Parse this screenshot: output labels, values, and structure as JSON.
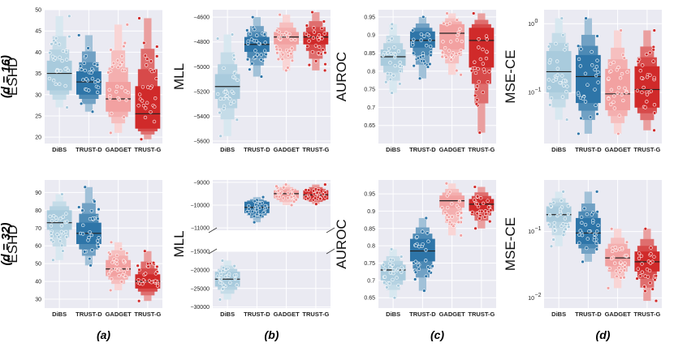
{
  "row_labels": [
    "(d = 16)",
    "(d = 32)"
  ],
  "column_labels": [
    "(a)",
    "(b)",
    "(c)",
    "(d)"
  ],
  "colors": {
    "DiBS": "#a9cbdd",
    "TRUST-D": "#2e75a8",
    "GADGET": "#f2a1a1",
    "TRUST-G": "#d02a2a",
    "panel_bg": "#eaeaf2"
  },
  "chart_data": [
    {
      "type": "boxen",
      "row": 0,
      "col": 0,
      "ylabel": "ESHD",
      "yscale": "linear",
      "ylim": [
        18.5,
        50
      ],
      "yticks": [
        20,
        25,
        30,
        35,
        40,
        45,
        50
      ],
      "categories": [
        "DiBS",
        "TRUST-D",
        "GADGET",
        "TRUST-G"
      ],
      "series": [
        {
          "name": "DiBS",
          "median": 35,
          "q1": 31,
          "q3": 38,
          "min": 27,
          "max": 48.5
        },
        {
          "name": "TRUST-D",
          "median": 33,
          "q1": 30,
          "q3": 35.5,
          "min": 26,
          "max": 44
        },
        {
          "name": "GADGET",
          "median": 29,
          "q1": 26,
          "q3": 33,
          "min": 21,
          "max": 46.5
        },
        {
          "name": "TRUST-G",
          "median": 25.5,
          "q1": 22,
          "q3": 32,
          "min": 19.5,
          "max": 48
        }
      ]
    },
    {
      "type": "boxen",
      "row": 0,
      "col": 1,
      "ylabel": "MLL",
      "yscale": "linear",
      "ylim": [
        -5620,
        -4540
      ],
      "yticks": [
        -4600,
        -4800,
        -5000,
        -5200,
        -5400,
        -5600
      ],
      "categories": [
        "DiBS",
        "TRUST-D",
        "GADGET",
        "TRUST-G"
      ],
      "series": [
        {
          "name": "DiBS",
          "median": -5160,
          "q1": -5260,
          "q3": -5060,
          "min": -5560,
          "max": -4740
        },
        {
          "name": "TRUST-D",
          "median": -4820,
          "q1": -4880,
          "q3": -4760,
          "min": -5080,
          "max": -4600
        },
        {
          "name": "GADGET",
          "median": -4760,
          "q1": -4820,
          "q3": -4720,
          "min": -5030,
          "max": -4580
        },
        {
          "name": "TRUST-G",
          "median": -4760,
          "q1": -4820,
          "q3": -4720,
          "min": -5030,
          "max": -4560
        }
      ]
    },
    {
      "type": "boxen",
      "row": 0,
      "col": 2,
      "ylabel": "AUROC",
      "yscale": "linear",
      "ylim": [
        0.6,
        0.97
      ],
      "yticks": [
        0.95,
        0.9,
        0.85,
        0.8,
        0.75,
        0.7,
        0.65
      ],
      "categories": [
        "DiBS",
        "TRUST-D",
        "GADGET",
        "TRUST-G"
      ],
      "series": [
        {
          "name": "DiBS",
          "median": 0.84,
          "q1": 0.815,
          "q3": 0.86,
          "min": 0.74,
          "max": 0.93
        },
        {
          "name": "TRUST-D",
          "median": 0.885,
          "q1": 0.865,
          "q3": 0.91,
          "min": 0.78,
          "max": 0.95
        },
        {
          "name": "GADGET",
          "median": 0.905,
          "q1": 0.86,
          "q3": 0.93,
          "min": 0.79,
          "max": 0.96
        },
        {
          "name": "TRUST-G",
          "median": 0.885,
          "q1": 0.81,
          "q3": 0.92,
          "min": 0.63,
          "max": 0.96
        }
      ]
    },
    {
      "type": "boxen",
      "row": 0,
      "col": 3,
      "ylabel": "MSE-CE",
      "yscale": "log",
      "ylim": [
        0.018,
        1.6
      ],
      "yticks": [
        1,
        0.1
      ],
      "yticklabels": [
        "10^0",
        "10^-1"
      ],
      "categories": [
        "DiBS",
        "TRUST-D",
        "GADGET",
        "TRUST-G"
      ],
      "series": [
        {
          "name": "DiBS",
          "median": 0.2,
          "q1": 0.1,
          "q3": 0.4,
          "min": 0.04,
          "max": 1.2
        },
        {
          "name": "TRUST-D",
          "median": 0.17,
          "q1": 0.07,
          "q3": 0.35,
          "min": 0.025,
          "max": 1.2
        },
        {
          "name": "GADGET",
          "median": 0.095,
          "q1": 0.055,
          "q3": 0.22,
          "min": 0.025,
          "max": 0.8
        },
        {
          "name": "TRUST-G",
          "median": 0.11,
          "q1": 0.06,
          "q3": 0.24,
          "min": 0.028,
          "max": 0.8
        }
      ]
    },
    {
      "type": "boxen",
      "row": 1,
      "col": 0,
      "ylabel": "ESHD",
      "yscale": "linear",
      "ylim": [
        25,
        97
      ],
      "yticks": [
        30,
        40,
        50,
        60,
        70,
        80,
        90
      ],
      "categories": [
        "DiBS",
        "TRUST-D",
        "GADGET",
        "TRUST-G"
      ],
      "series": [
        {
          "name": "DiBS",
          "median": 73,
          "q1": 69,
          "q3": 80,
          "min": 52,
          "max": 89
        },
        {
          "name": "TRUST-D",
          "median": 67,
          "q1": 61,
          "q3": 73,
          "min": 49,
          "max": 93
        },
        {
          "name": "GADGET",
          "median": 47,
          "q1": 43,
          "q3": 52,
          "min": 35,
          "max": 62
        },
        {
          "name": "TRUST-G",
          "median": 40,
          "q1": 36,
          "q3": 44,
          "min": 29,
          "max": 57
        }
      ]
    },
    {
      "type": "boxen_broken",
      "row": 1,
      "col": 1,
      "ylabel": "MLL",
      "yscale": "broken",
      "upper_ylim": [
        -11100,
        -8900
      ],
      "upper_yticks": [
        -9000,
        -10000,
        -11000
      ],
      "lower_ylim": [
        -30300,
        -15000
      ],
      "lower_yticks": [
        -15000,
        -20000,
        -25000,
        -30000
      ],
      "categories": [
        "DiBS",
        "TRUST-D",
        "GADGET",
        "TRUST-G"
      ],
      "series": [
        {
          "name": "DiBS",
          "segment": "lower",
          "median": -22500,
          "q1": -24500,
          "q3": -20500,
          "min": -28000,
          "max": -17500
        },
        {
          "name": "TRUST-D",
          "segment": "upper",
          "median": -10100,
          "q1": -10350,
          "q3": -9850,
          "min": -10750,
          "max": -9650
        },
        {
          "name": "GADGET",
          "segment": "upper",
          "median": -9500,
          "q1": -9700,
          "q3": -9350,
          "min": -10000,
          "max": -9100
        },
        {
          "name": "TRUST-G",
          "segment": "upper",
          "median": -9550,
          "q1": -9750,
          "q3": -9350,
          "min": -9950,
          "max": -9100
        }
      ]
    },
    {
      "type": "boxen",
      "row": 1,
      "col": 2,
      "ylabel": "AUROC",
      "yscale": "linear",
      "ylim": [
        0.62,
        0.99
      ],
      "yticks": [
        0.95,
        0.9,
        0.85,
        0.8,
        0.75,
        0.7,
        0.65
      ],
      "categories": [
        "DiBS",
        "TRUST-D",
        "GADGET",
        "TRUST-G"
      ],
      "series": [
        {
          "name": "DiBS",
          "median": 0.73,
          "q1": 0.7,
          "q3": 0.745,
          "min": 0.65,
          "max": 0.79
        },
        {
          "name": "TRUST-D",
          "median": 0.785,
          "q1": 0.755,
          "q3": 0.82,
          "min": 0.67,
          "max": 0.88
        },
        {
          "name": "GADGET",
          "median": 0.93,
          "q1": 0.91,
          "q3": 0.945,
          "min": 0.83,
          "max": 0.98
        },
        {
          "name": "TRUST-G",
          "median": 0.92,
          "q1": 0.9,
          "q3": 0.935,
          "min": 0.85,
          "max": 0.97
        }
      ]
    },
    {
      "type": "boxen",
      "row": 1,
      "col": 3,
      "ylabel": "MSE-CE",
      "yscale": "log",
      "ylim": [
        0.007,
        0.6
      ],
      "yticks": [
        0.1,
        0.01
      ],
      "yticklabels": [
        "10^-1",
        "10^-2"
      ],
      "categories": [
        "DiBS",
        "TRUST-D",
        "GADGET",
        "TRUST-G"
      ],
      "series": [
        {
          "name": "DiBS",
          "median": 0.18,
          "q1": 0.14,
          "q3": 0.24,
          "min": 0.06,
          "max": 0.4
        },
        {
          "name": "TRUST-D",
          "median": 0.095,
          "q1": 0.065,
          "q3": 0.16,
          "min": 0.035,
          "max": 0.4
        },
        {
          "name": "GADGET",
          "median": 0.04,
          "q1": 0.03,
          "q3": 0.055,
          "min": 0.014,
          "max": 0.11
        },
        {
          "name": "TRUST-G",
          "median": 0.035,
          "q1": 0.025,
          "q3": 0.05,
          "min": 0.009,
          "max": 0.11
        }
      ]
    }
  ]
}
